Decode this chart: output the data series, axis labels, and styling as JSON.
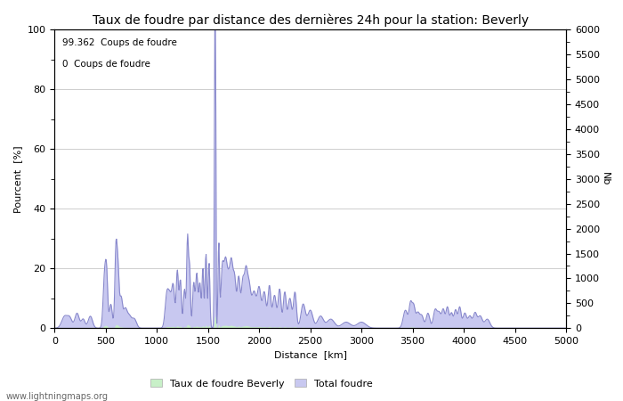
{
  "title": "Taux de foudre par distance des dernières 24h pour la station: Beverly",
  "xlabel": "Distance  [km]",
  "ylabel_left": "Pourcent  [%]",
  "ylabel_right": "Nb",
  "annotation_line1": "99.362  Coups de foudre",
  "annotation_line2": "0  Coups de foudre",
  "legend_label1": "Taux de foudre Beverly",
  "legend_label2": "Total foudre",
  "footer": "www.lightningmaps.org",
  "xlim": [
    0,
    5000
  ],
  "ylim_left": [
    0,
    100
  ],
  "ylim_right": [
    0,
    6000
  ],
  "yticks_left": [
    0,
    20,
    40,
    60,
    80,
    100
  ],
  "yticks_right": [
    0,
    500,
    1000,
    1500,
    2000,
    2500,
    3000,
    3500,
    4000,
    4500,
    5000,
    5500,
    6000
  ],
  "xticks": [
    0,
    500,
    1000,
    1500,
    2000,
    2500,
    3000,
    3500,
    4000,
    4500,
    5000
  ],
  "fill_color_green": "#c8f0c8",
  "fill_color_blue": "#c8c8f0",
  "line_color": "#8888cc",
  "background_color": "#ffffff",
  "grid_color": "#bbbbbb",
  "title_fontsize": 10,
  "axis_fontsize": 8,
  "tick_fontsize": 8
}
